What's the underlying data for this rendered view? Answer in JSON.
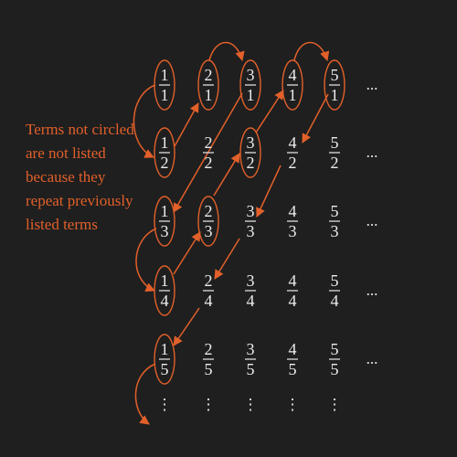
{
  "note": {
    "lines": [
      "Terms not circled",
      "are not listed",
      "because they",
      "repeat previously",
      "listed terms"
    ]
  },
  "grid": {
    "rows": [
      [
        {
          "num": "1",
          "den": "1"
        },
        {
          "num": "2",
          "den": "1"
        },
        {
          "num": "3",
          "den": "1"
        },
        {
          "num": "4",
          "den": "1"
        },
        {
          "num": "5",
          "den": "1"
        }
      ],
      [
        {
          "num": "1",
          "den": "2"
        },
        {
          "num": "2",
          "den": "2"
        },
        {
          "num": "3",
          "den": "2"
        },
        {
          "num": "4",
          "den": "2"
        },
        {
          "num": "5",
          "den": "2"
        }
      ],
      [
        {
          "num": "1",
          "den": "3"
        },
        {
          "num": "2",
          "den": "3"
        },
        {
          "num": "3",
          "den": "3"
        },
        {
          "num": "4",
          "den": "3"
        },
        {
          "num": "5",
          "den": "3"
        }
      ],
      [
        {
          "num": "1",
          "den": "4"
        },
        {
          "num": "2",
          "den": "4"
        },
        {
          "num": "3",
          "den": "4"
        },
        {
          "num": "4",
          "den": "4"
        },
        {
          "num": "5",
          "den": "4"
        }
      ],
      [
        {
          "num": "1",
          "den": "5"
        },
        {
          "num": "2",
          "den": "5"
        },
        {
          "num": "3",
          "den": "5"
        },
        {
          "num": "4",
          "den": "5"
        },
        {
          "num": "5",
          "den": "5"
        }
      ]
    ],
    "circled": [
      [
        0,
        0
      ],
      [
        0,
        1
      ],
      [
        0,
        2
      ],
      [
        0,
        3
      ],
      [
        0,
        4
      ],
      [
        1,
        0
      ],
      [
        1,
        2
      ],
      [
        2,
        0
      ],
      [
        2,
        1
      ],
      [
        3,
        0
      ],
      [
        4,
        0
      ]
    ],
    "row_ellipsis": "...",
    "col_ellipsis": "⋮"
  },
  "colors": {
    "background": "#1f1f1f",
    "text": "#ececec",
    "accent": "#e2602a"
  }
}
